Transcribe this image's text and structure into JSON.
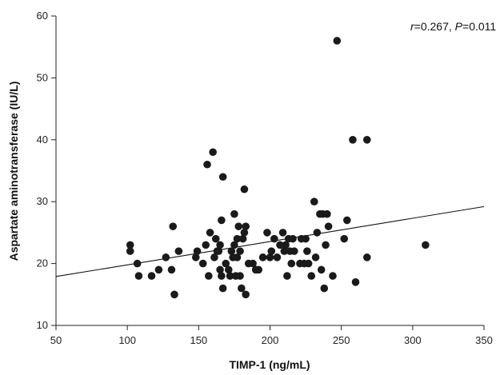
{
  "chart_data": {
    "type": "scatter",
    "title": "",
    "xlabel": "TIMP-1 (ng/mL)",
    "ylabel": "Aspartate aminotransferase (IU/L)",
    "xlim": [
      50,
      350
    ],
    "ylim": [
      10,
      60
    ],
    "x_ticks": [
      50,
      100,
      150,
      200,
      250,
      300,
      350
    ],
    "y_ticks": [
      10,
      20,
      30,
      40,
      50,
      60
    ],
    "grid": false,
    "annotation": {
      "r_symbol": "r",
      "r_text": "=0.267, ",
      "p_symbol": "P",
      "p_text": "=0.011"
    },
    "trendline": {
      "x": [
        50,
        350
      ],
      "y": [
        17.9,
        29.2
      ]
    },
    "marker_color": "#1a1a1a",
    "points": [
      {
        "x": 102,
        "y": 23
      },
      {
        "x": 102,
        "y": 22
      },
      {
        "x": 107,
        "y": 20
      },
      {
        "x": 108,
        "y": 18
      },
      {
        "x": 117,
        "y": 18
      },
      {
        "x": 122,
        "y": 19
      },
      {
        "x": 127,
        "y": 21
      },
      {
        "x": 131,
        "y": 19
      },
      {
        "x": 132,
        "y": 26
      },
      {
        "x": 133,
        "y": 15
      },
      {
        "x": 136,
        "y": 22
      },
      {
        "x": 148,
        "y": 21
      },
      {
        "x": 149,
        "y": 22
      },
      {
        "x": 153,
        "y": 20
      },
      {
        "x": 155,
        "y": 23
      },
      {
        "x": 156,
        "y": 36
      },
      {
        "x": 157,
        "y": 18
      },
      {
        "x": 158,
        "y": 25
      },
      {
        "x": 160,
        "y": 38
      },
      {
        "x": 161,
        "y": 21
      },
      {
        "x": 162,
        "y": 24
      },
      {
        "x": 163,
        "y": 22
      },
      {
        "x": 164,
        "y": 22
      },
      {
        "x": 165,
        "y": 23
      },
      {
        "x": 165,
        "y": 19
      },
      {
        "x": 166,
        "y": 18
      },
      {
        "x": 166,
        "y": 27
      },
      {
        "x": 167,
        "y": 34
      },
      {
        "x": 167,
        "y": 16
      },
      {
        "x": 169,
        "y": 20
      },
      {
        "x": 171,
        "y": 19
      },
      {
        "x": 172,
        "y": 18
      },
      {
        "x": 173,
        "y": 22
      },
      {
        "x": 174,
        "y": 21
      },
      {
        "x": 175,
        "y": 23
      },
      {
        "x": 175,
        "y": 28
      },
      {
        "x": 176,
        "y": 18
      },
      {
        "x": 177,
        "y": 24
      },
      {
        "x": 177,
        "y": 21
      },
      {
        "x": 178,
        "y": 26
      },
      {
        "x": 179,
        "y": 18
      },
      {
        "x": 179,
        "y": 22
      },
      {
        "x": 180,
        "y": 16
      },
      {
        "x": 181,
        "y": 24
      },
      {
        "x": 182,
        "y": 25
      },
      {
        "x": 182,
        "y": 32
      },
      {
        "x": 183,
        "y": 26
      },
      {
        "x": 183,
        "y": 15
      },
      {
        "x": 185,
        "y": 20
      },
      {
        "x": 188,
        "y": 20
      },
      {
        "x": 190,
        "y": 19
      },
      {
        "x": 192,
        "y": 19
      },
      {
        "x": 195,
        "y": 21
      },
      {
        "x": 198,
        "y": 25
      },
      {
        "x": 200,
        "y": 21
      },
      {
        "x": 201,
        "y": 22
      },
      {
        "x": 203,
        "y": 24
      },
      {
        "x": 205,
        "y": 21
      },
      {
        "x": 207,
        "y": 23
      },
      {
        "x": 209,
        "y": 25
      },
      {
        "x": 210,
        "y": 22
      },
      {
        "x": 211,
        "y": 23
      },
      {
        "x": 212,
        "y": 18
      },
      {
        "x": 213,
        "y": 24
      },
      {
        "x": 214,
        "y": 22
      },
      {
        "x": 215,
        "y": 20
      },
      {
        "x": 216,
        "y": 24
      },
      {
        "x": 217,
        "y": 22
      },
      {
        "x": 221,
        "y": 20
      },
      {
        "x": 222,
        "y": 24
      },
      {
        "x": 224,
        "y": 20
      },
      {
        "x": 225,
        "y": 24
      },
      {
        "x": 226,
        "y": 22
      },
      {
        "x": 227,
        "y": 20
      },
      {
        "x": 229,
        "y": 18
      },
      {
        "x": 231,
        "y": 30
      },
      {
        "x": 232,
        "y": 21
      },
      {
        "x": 233,
        "y": 25
      },
      {
        "x": 235,
        "y": 28
      },
      {
        "x": 236,
        "y": 19
      },
      {
        "x": 237,
        "y": 28
      },
      {
        "x": 238,
        "y": 16
      },
      {
        "x": 239,
        "y": 23
      },
      {
        "x": 240,
        "y": 28
      },
      {
        "x": 241,
        "y": 26
      },
      {
        "x": 244,
        "y": 18
      },
      {
        "x": 247,
        "y": 56
      },
      {
        "x": 252,
        "y": 24
      },
      {
        "x": 254,
        "y": 27
      },
      {
        "x": 258,
        "y": 40
      },
      {
        "x": 260,
        "y": 17
      },
      {
        "x": 268,
        "y": 40
      },
      {
        "x": 268,
        "y": 21
      },
      {
        "x": 309,
        "y": 23
      }
    ]
  }
}
